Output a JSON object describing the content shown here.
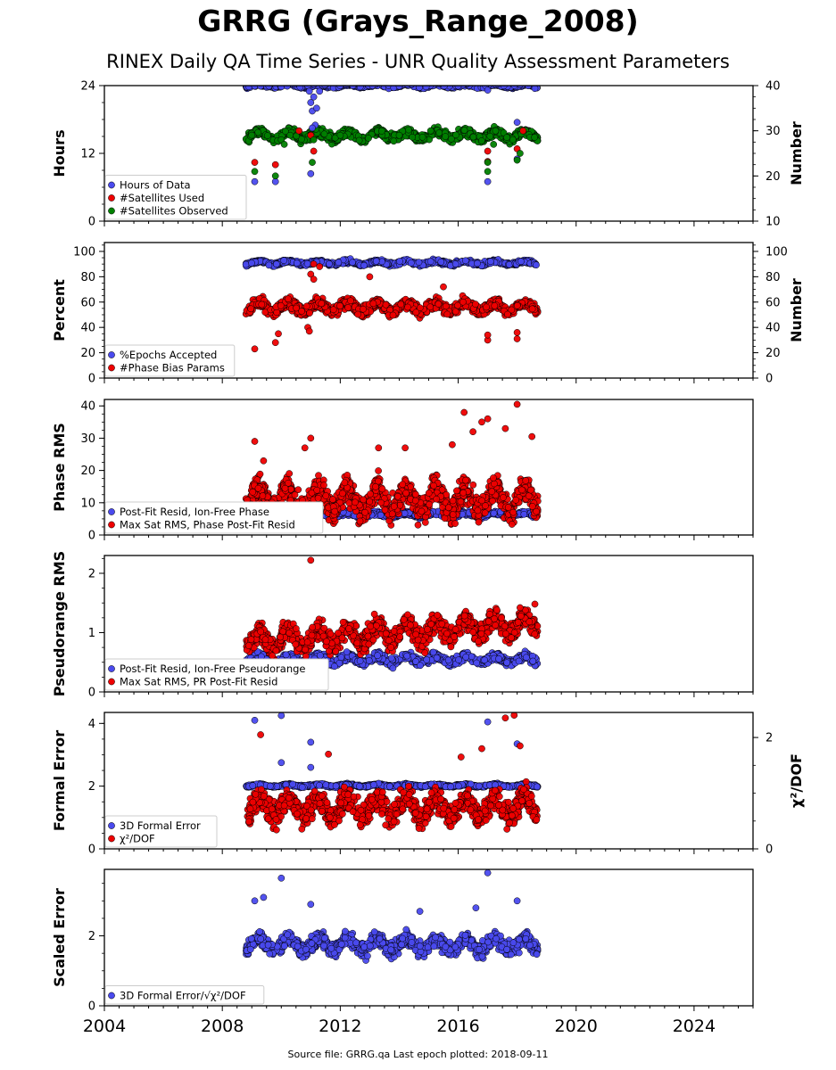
{
  "page": {
    "title": "GRRG (Grays_Range_2008)",
    "subtitle": "RINEX Daily QA Time Series - UNR Quality Assessment Parameters",
    "footer": "Source file: GRRG.qa Last epoch plotted: 2018-09-11"
  },
  "colors": {
    "blue": "#4a4aee",
    "red": "#ee0000",
    "green": "#008000",
    "edge": "#000000"
  },
  "chart_data": [
    {
      "type": "scatter",
      "ylabel": "Hours",
      "ylabel_right": "Number",
      "ylim": [
        0,
        24
      ],
      "ylim_right": [
        10,
        40
      ],
      "yticks": [
        "0",
        "12",
        "24"
      ],
      "yticks_right": [
        "10",
        "20",
        "30",
        "40"
      ],
      "xlim": [
        2004,
        2026
      ],
      "legend": "lower-left",
      "series": [
        {
          "name": "Hours of Data",
          "color": "blue",
          "axis": "left",
          "points": [
            [
              2008.9,
              23.8
            ],
            [
              2009.1,
              23.9
            ],
            [
              2009.3,
              23.9
            ],
            [
              2009.8,
              7
            ],
            [
              2010.0,
              23.8
            ],
            [
              2010.2,
              23.9
            ],
            [
              2010.9,
              24
            ],
            [
              2010.95,
              23
            ],
            [
              2011.0,
              21
            ],
            [
              2011.05,
              19.5
            ],
            [
              2011.1,
              22
            ],
            [
              2011.15,
              17
            ],
            [
              2011.2,
              20
            ],
            [
              2011.3,
              23
            ],
            [
              2011.0,
              8.4
            ],
            [
              2011.05,
              16.5
            ],
            [
              2009.1,
              7
            ],
            [
              2014.0,
              23.9
            ],
            [
              2016.0,
              23.9
            ],
            [
              2017.0,
              7
            ],
            [
              2017.0,
              23.2
            ],
            [
              2018.0,
              17.5
            ],
            [
              2018.0,
              11
            ],
            [
              2018.6,
              23.5
            ]
          ]
        },
        {
          "name": "#Satellites Used",
          "color": "red",
          "axis": "right",
          "points": [
            [
              2009.1,
              23
            ],
            [
              2009.8,
              22.5
            ],
            [
              2010.6,
              30
            ],
            [
              2011.1,
              25.5
            ],
            [
              2011.0,
              29
            ],
            [
              2017.0,
              25.5
            ],
            [
              2017.0,
              23.2
            ],
            [
              2018.0,
              26
            ],
            [
              2018.2,
              30
            ]
          ]
        },
        {
          "name": "#Satellites Observed",
          "color": "green",
          "axis": "right",
          "points": [
            [
              2009.1,
              21
            ],
            [
              2009.8,
              20
            ],
            [
              2010.0,
              28
            ],
            [
              2010.1,
              27
            ],
            [
              2010.3,
              29
            ],
            [
              2011.05,
              23
            ],
            [
              2011.1,
              28
            ],
            [
              2012.0,
              29
            ],
            [
              2014.0,
              29
            ],
            [
              2017.0,
              23
            ],
            [
              2017.0,
              21
            ],
            [
              2017.2,
              27
            ],
            [
              2018.0,
              23.5
            ],
            [
              2018.1,
              25
            ]
          ]
        }
      ],
      "bands": [
        {
          "series": "Hours of Data",
          "axis": "left",
          "x0": 2008.8,
          "x1": 2018.7,
          "center": 24,
          "spread": 0.5,
          "n": 900
        },
        {
          "series": "#Satellites Observed",
          "axis": "right",
          "x0": 2008.8,
          "x1": 2018.7,
          "center": 29,
          "spread": 1.6,
          "n": 900
        }
      ]
    },
    {
      "type": "scatter",
      "ylabel": "Percent",
      "ylabel_right": "Number",
      "ylim": [
        0,
        107
      ],
      "ylim_right": [
        0,
        107
      ],
      "yticks": [
        "0",
        "20",
        "40",
        "60",
        "80",
        "100"
      ],
      "yticks_right": [
        "0",
        "20",
        "40",
        "60",
        "80",
        "100"
      ],
      "xlim": [
        2004,
        2026
      ],
      "legend": "lower-left",
      "series": [
        {
          "name": "%Epochs Accepted",
          "color": "blue",
          "axis": "left",
          "points": []
        },
        {
          "name": "#Phase Bias Params",
          "color": "red",
          "axis": "right",
          "points": [
            [
              2009.1,
              23
            ],
            [
              2009.8,
              28
            ],
            [
              2009.9,
              35
            ],
            [
              2010.9,
              40
            ],
            [
              2010.95,
              37
            ],
            [
              2011.1,
              90
            ],
            [
              2011.3,
              88
            ],
            [
              2011.0,
              82
            ],
            [
              2011.1,
              78
            ],
            [
              2017.0,
              30
            ],
            [
              2017.0,
              34
            ],
            [
              2018.0,
              31
            ],
            [
              2018.0,
              36
            ],
            [
              2013.0,
              80
            ],
            [
              2015.5,
              72
            ]
          ]
        }
      ],
      "bands": [
        {
          "series": "%Epochs Accepted",
          "axis": "left",
          "x0": 2008.8,
          "x1": 2018.7,
          "center": 91,
          "spread": 2.5,
          "n": 900
        },
        {
          "series": "#Phase Bias Params",
          "axis": "right",
          "x0": 2008.8,
          "x1": 2018.7,
          "center": 56,
          "spread": 7,
          "n": 1100
        }
      ]
    },
    {
      "type": "scatter",
      "ylabel": "Phase RMS",
      "ylim": [
        0,
        42
      ],
      "yticks": [
        "0",
        "10",
        "20",
        "30",
        "40"
      ],
      "xlim": [
        2004,
        2026
      ],
      "legend": "lower-left",
      "series": [
        {
          "name": "Post-Fit Resid, Ion-Free Phase",
          "color": "blue",
          "axis": "left",
          "points": []
        },
        {
          "name": "Max Sat RMS, Phase Post-Fit Resid",
          "color": "red",
          "axis": "left",
          "points": [
            [
              2009.1,
              29
            ],
            [
              2009.4,
              23
            ],
            [
              2010.8,
              27
            ],
            [
              2011.0,
              30
            ],
            [
              2016.2,
              38
            ],
            [
              2016.8,
              35
            ],
            [
              2017.0,
              36
            ],
            [
              2018.0,
              40.5
            ],
            [
              2018.5,
              30.5
            ],
            [
              2017.6,
              33
            ],
            [
              2016.5,
              32
            ],
            [
              2013.3,
              27
            ],
            [
              2014.2,
              27
            ],
            [
              2015.8,
              28
            ]
          ]
        },
        {
          "name": "",
          "color": "blue",
          "axis": "left",
          "points": []
        }
      ],
      "bands": [
        {
          "series": "Post-Fit Resid, Ion-Free Phase",
          "axis": "left",
          "x0": 2008.8,
          "x1": 2018.7,
          "center": 6.3,
          "spread": 1.2,
          "n": 800
        },
        {
          "series": "Max Sat RMS, Phase Post-Fit Resid",
          "axis": "left",
          "x0": 2008.8,
          "x1": 2018.7,
          "center": 11,
          "spread": 7,
          "n": 1200
        }
      ]
    },
    {
      "type": "scatter",
      "ylabel": "Pseudorange RMS",
      "ylim": [
        0,
        2.3
      ],
      "yticks": [
        "0",
        "1",
        "2"
      ],
      "xlim": [
        2004,
        2026
      ],
      "legend": "lower-left",
      "series": [
        {
          "name": "Post-Fit Resid, Ion-Free Pseudorange",
          "color": "blue",
          "axis": "left",
          "points": []
        },
        {
          "name": "Max Sat RMS, PR Post-Fit Resid",
          "color": "red",
          "axis": "left",
          "points": [
            [
              2011.0,
              2.22
            ],
            [
              2018.6,
              1.48
            ],
            [
              2018.1,
              1.42
            ]
          ]
        }
      ],
      "bands": [
        {
          "series": "Post-Fit Resid, Ion-Free Pseudorange",
          "axis": "left",
          "x0": 2008.8,
          "x1": 2018.7,
          "center": 0.55,
          "spread": 0.12,
          "n": 900
        },
        {
          "series": "Max Sat RMS, PR Post-Fit Resid",
          "axis": "left",
          "x0": 2008.8,
          "x1": 2018.7,
          "center": 0.85,
          "spread": 0.3,
          "n": 1100,
          "trend": 0.03
        }
      ]
    },
    {
      "type": "scatter",
      "ylabel": "Formal Error",
      "ylabel_right": "χ²/DOF",
      "ylim": [
        0,
        4.35
      ],
      "ylim_right": [
        0,
        2.45
      ],
      "yticks": [
        "0",
        "2",
        "4"
      ],
      "yticks_right": [
        "0",
        "2"
      ],
      "xlim": [
        2004,
        2026
      ],
      "legend": "lower-left",
      "series": [
        {
          "name": "3D Formal Error",
          "color": "blue",
          "axis": "left",
          "points": [
            [
              2009.1,
              4.1
            ],
            [
              2010.0,
              4.25
            ],
            [
              2011.0,
              3.4
            ],
            [
              2017.0,
              4.05
            ],
            [
              2018.0,
              3.35
            ],
            [
              2011.0,
              2.6
            ],
            [
              2010.0,
              2.75
            ]
          ]
        },
        {
          "name": "χ²/DOF",
          "color": "red",
          "axis": "right",
          "points": [
            [
              2009.3,
              2.05
            ],
            [
              2011.6,
              1.7
            ],
            [
              2017.6,
              2.35
            ],
            [
              2017.9,
              2.4
            ],
            [
              2018.1,
              1.85
            ],
            [
              2016.1,
              1.65
            ],
            [
              2016.8,
              1.8
            ]
          ]
        }
      ],
      "bands": [
        {
          "series": "3D Formal Error",
          "axis": "left",
          "x0": 2008.8,
          "x1": 2018.7,
          "center": 2.02,
          "spread": 0.06,
          "n": 900
        },
        {
          "series": "χ²/DOF",
          "axis": "right",
          "x0": 2008.8,
          "x1": 2018.7,
          "center": 0.75,
          "spread": 0.35,
          "n": 1100
        }
      ]
    },
    {
      "type": "scatter",
      "ylabel": "Scaled Error",
      "ylim": [
        0,
        3.9
      ],
      "yticks": [
        "0",
        "2"
      ],
      "xlim": [
        2004,
        2026
      ],
      "xticks": [
        "2004",
        "2008",
        "2012",
        "2016",
        "2020",
        "2024"
      ],
      "legend": "lower-left",
      "series": [
        {
          "name": "3D Formal Error/√χ²/DOF",
          "color": "blue",
          "axis": "left",
          "points": [
            [
              2009.1,
              3.0
            ],
            [
              2009.4,
              3.1
            ],
            [
              2010.0,
              3.65
            ],
            [
              2011.0,
              2.9
            ],
            [
              2017.0,
              3.8
            ],
            [
              2018.0,
              3.0
            ],
            [
              2016.6,
              2.8
            ],
            [
              2014.7,
              2.7
            ]
          ]
        }
      ],
      "bands": [
        {
          "series": "3D Formal Error/√χ²/DOF",
          "axis": "left",
          "x0": 2008.8,
          "x1": 2018.7,
          "center": 1.75,
          "spread": 0.35,
          "n": 1100
        }
      ]
    }
  ]
}
